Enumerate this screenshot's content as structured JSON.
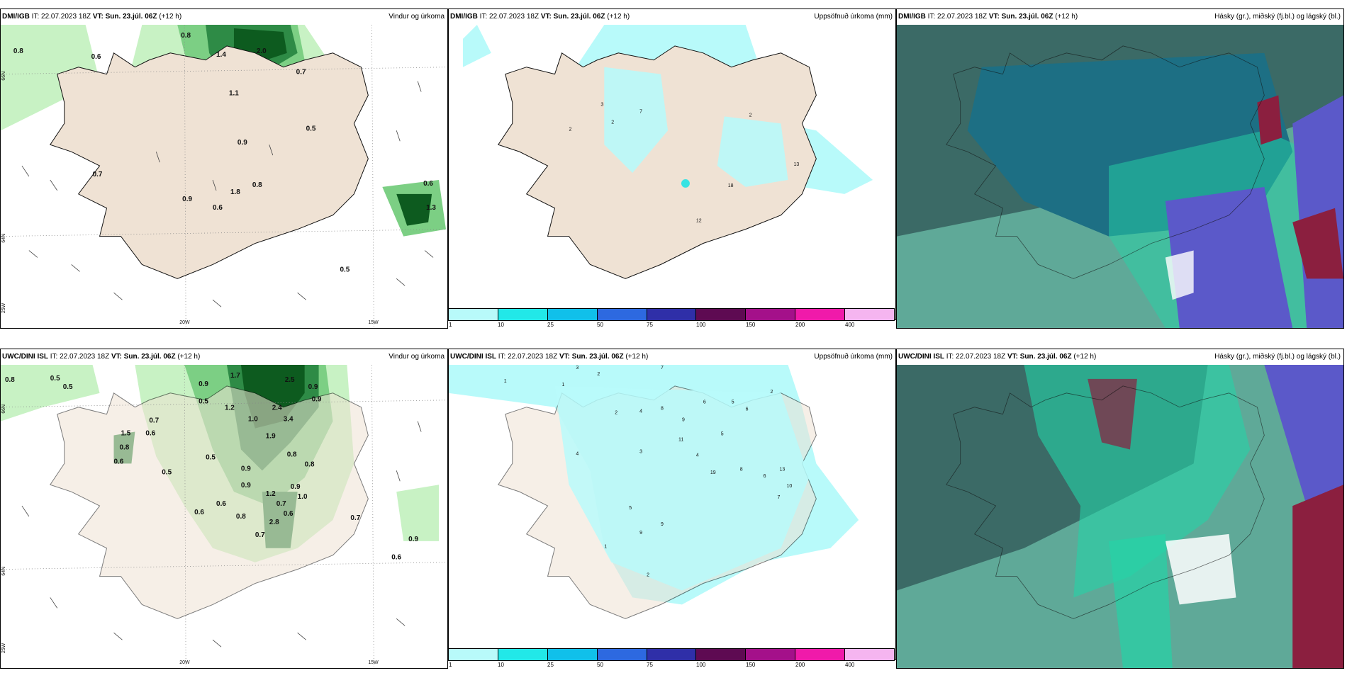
{
  "colors": {
    "land": "#efe2d4",
    "precip_light": "#c8f2c4",
    "precip_mid": "#7ccf84",
    "precip_dark": "#2e8b46",
    "precip_darkest": "#0d5b1f",
    "accum_light": "#b8fafa",
    "accum_mid": "#36e3e3",
    "cloud_sea": "#5fa998",
    "cloud_high": "#3b6a66",
    "cloud_mid": "#1d6f84",
    "cloud_teal": "#25d3a6",
    "cloud_violet": "#5b59c9",
    "cloud_maroon": "#8b1f3f"
  },
  "panels": [
    {
      "model": "DMI/IGB",
      "it": "IT: 22.07.2023 18Z",
      "vt_label": "VT:",
      "vt": "Sun. 23.júl. 06Z",
      "lead": "(+12 h)",
      "title": "Vindur og úrkoma"
    },
    {
      "model": "DMI/IGB",
      "it": "IT: 22.07.2023 18Z",
      "vt_label": "VT:",
      "vt": "Sun. 23.júl. 06Z",
      "lead": "(+12 h)",
      "title": "Uppsöfnuð úrkoma (mm)"
    },
    {
      "model": "DMI/IGB",
      "it": "IT: 22.07.2023 18Z",
      "vt_label": "VT:",
      "vt": "Sun. 23.júl. 06Z",
      "lead": "(+12 h)",
      "title": "Hásky (gr.), miðský (fj.bl.) og lágský (bl.)"
    },
    {
      "model": "UWC/DINI ISL",
      "it": "IT: 22.07.2023 18Z",
      "vt_label": "VT:",
      "vt": "Sun. 23.júl. 06Z",
      "lead": "(+12 h)",
      "title": "Vindur og úrkoma"
    },
    {
      "model": "UWC/DINI ISL",
      "it": "IT: 22.07.2023 18Z",
      "vt_label": "VT:",
      "vt": "Sun. 23.júl. 06Z",
      "lead": "(+12 h)",
      "title": "Uppsöfnuð úrkoma (mm)"
    },
    {
      "model": "UWC/DINI ISL",
      "it": "IT: 22.07.2023 18Z",
      "vt_label": "VT:",
      "vt": "Sun. 23.júl. 06Z",
      "lead": "(+12 h)",
      "title": "Hásky (gr.), miðský (fj.bl.) og lágský (bl.)"
    }
  ],
  "axes": {
    "lon_20": "20W",
    "lon_15": "15W",
    "lat_66": "66N",
    "lat_64": "64N",
    "lon_25": "25W"
  },
  "colorbar": {
    "colors": [
      "#b8fafa",
      "#22e8e8",
      "#10c0ea",
      "#2d69e0",
      "#2f2fa8",
      "#5e0a52",
      "#a4108a",
      "#f01aaa",
      "#f5b5f0"
    ],
    "labels": [
      "1",
      "10",
      "25",
      "50",
      "75",
      "100",
      "150",
      "200",
      "400"
    ]
  },
  "top_precip_labels": [
    "0.8",
    "0.6",
    "0.8",
    "2.0",
    "1.4",
    "0.7",
    "1.1",
    "0.9",
    "0.5",
    "0.7",
    "0.8",
    "0.9",
    "0.6",
    "1.8",
    "0.6",
    "1.3",
    "0.5"
  ],
  "top_accum_labels": [
    "3",
    "7",
    "2",
    "2",
    "2",
    "13",
    "18",
    "12"
  ],
  "bottom_precip_labels": [
    "0.8",
    "0.5",
    "0.5",
    "0.9",
    "1.7",
    "2.5",
    "0.9",
    "0.9",
    "2.4",
    "3.4",
    "0.7",
    "0.6",
    "0.5",
    "1.0",
    "1.2",
    "1.9",
    "0.8",
    "0.8",
    "0.5",
    "0.9",
    "0.8",
    "0.6",
    "1.2",
    "1.0",
    "0.9",
    "0.7",
    "0.6",
    "0.8",
    "0.7",
    "0.6",
    "0.5",
    "0.9",
    "0.7",
    "0.9",
    "0.6",
    "1.5",
    "0.6",
    "2.8"
  ],
  "bottom_accum_labels": [
    "1",
    "3",
    "2",
    "1",
    "7",
    "2",
    "4",
    "8",
    "9",
    "6",
    "5",
    "6",
    "11",
    "5",
    "4",
    "3",
    "2",
    "8",
    "6",
    "13",
    "19",
    "10",
    "7",
    "5",
    "9",
    "9",
    "4",
    "1",
    "2"
  ]
}
